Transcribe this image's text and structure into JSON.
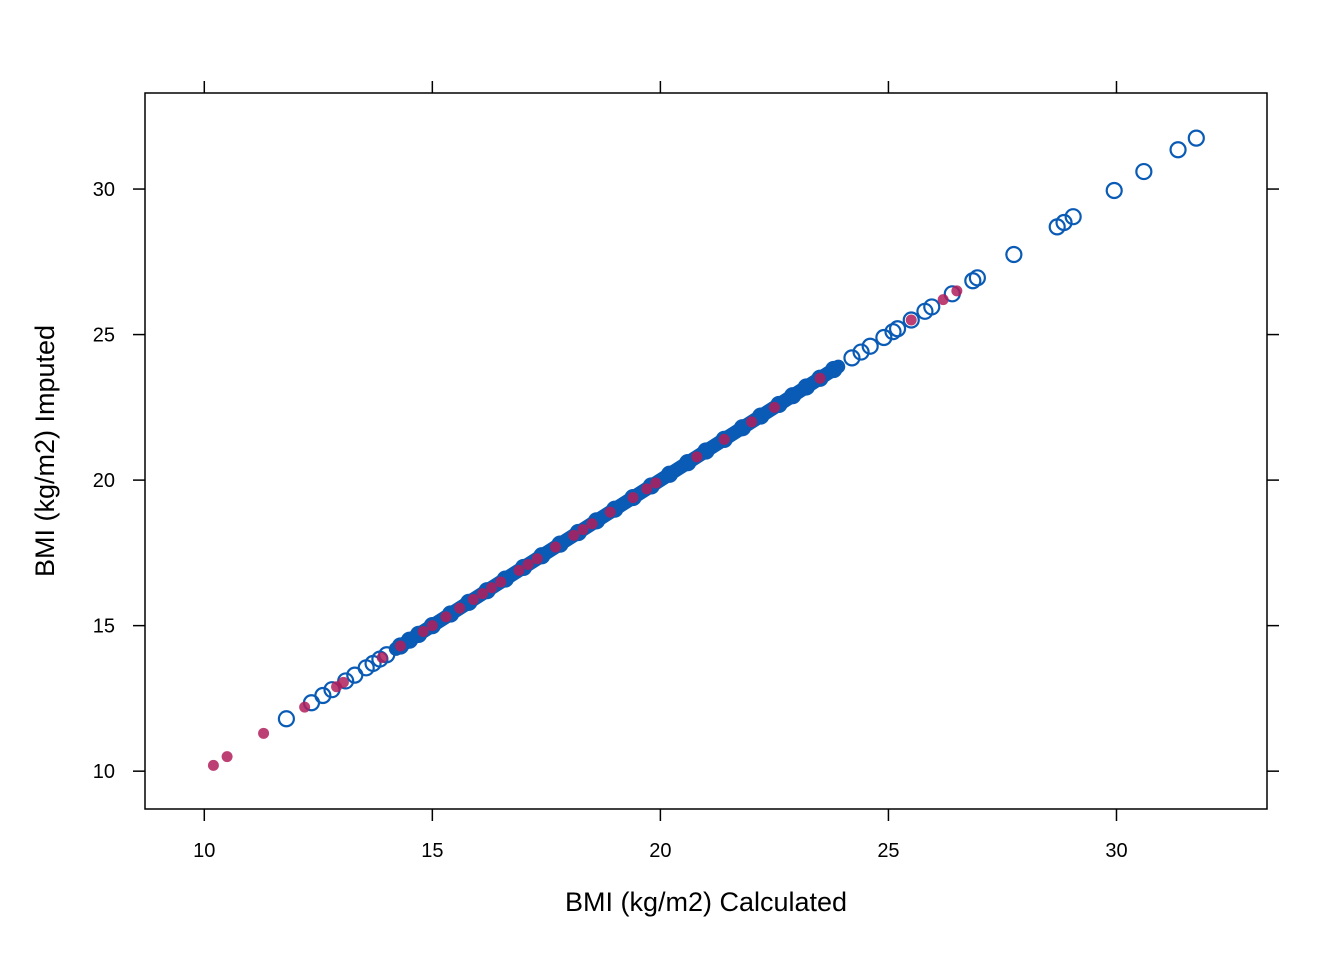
{
  "chart_data": {
    "type": "scatter",
    "title": "",
    "xlabel": "BMI (kg/m2) Calculated",
    "ylabel": "BMI (kg/m2) Imputed",
    "xlim": [
      8.7,
      33.3
    ],
    "ylim": [
      8.7,
      33.3
    ],
    "xticks": [
      "10",
      "15",
      "20",
      "25",
      "30"
    ],
    "yticks": [
      "10",
      "15",
      "20",
      "25",
      "30"
    ],
    "grid": false,
    "legend": "none",
    "series": [
      {
        "marker": "open-circle",
        "color": "#0a5bb5",
        "points": [
          [
            11.8,
            11.8
          ],
          [
            12.35,
            12.35
          ],
          [
            12.6,
            12.6
          ],
          [
            12.8,
            12.8
          ],
          [
            13.1,
            13.1
          ],
          [
            13.3,
            13.3
          ],
          [
            13.55,
            13.55
          ],
          [
            13.7,
            13.7
          ],
          [
            13.85,
            13.85
          ],
          [
            14.0,
            14.0
          ],
          [
            14.3,
            14.3
          ],
          [
            14.5,
            14.5
          ],
          [
            14.7,
            14.7
          ],
          [
            15.0,
            15.0
          ],
          [
            15.4,
            15.4
          ],
          [
            15.8,
            15.8
          ],
          [
            16.2,
            16.2
          ],
          [
            16.6,
            16.6
          ],
          [
            17.0,
            17.0
          ],
          [
            17.4,
            17.4
          ],
          [
            17.8,
            17.8
          ],
          [
            18.2,
            18.2
          ],
          [
            18.6,
            18.6
          ],
          [
            19.0,
            19.0
          ],
          [
            19.4,
            19.4
          ],
          [
            19.8,
            19.8
          ],
          [
            20.2,
            20.2
          ],
          [
            20.6,
            20.6
          ],
          [
            21.0,
            21.0
          ],
          [
            21.4,
            21.4
          ],
          [
            21.8,
            21.8
          ],
          [
            22.2,
            22.2
          ],
          [
            22.6,
            22.6
          ],
          [
            22.9,
            22.9
          ],
          [
            23.2,
            23.2
          ],
          [
            23.5,
            23.5
          ],
          [
            23.8,
            23.8
          ],
          [
            24.2,
            24.2
          ],
          [
            24.4,
            24.4
          ],
          [
            24.6,
            24.6
          ],
          [
            24.9,
            24.9
          ],
          [
            25.1,
            25.1
          ],
          [
            25.2,
            25.2
          ],
          [
            25.5,
            25.5
          ],
          [
            25.8,
            25.8
          ],
          [
            25.95,
            25.95
          ],
          [
            26.4,
            26.4
          ],
          [
            26.85,
            26.85
          ],
          [
            26.95,
            26.95
          ],
          [
            27.75,
            27.75
          ],
          [
            28.7,
            28.7
          ],
          [
            28.85,
            28.85
          ],
          [
            29.05,
            29.05
          ],
          [
            29.95,
            29.95
          ],
          [
            30.6,
            30.6
          ],
          [
            31.35,
            31.35
          ],
          [
            31.75,
            31.75
          ]
        ]
      },
      {
        "marker": "filled-circle",
        "color": "#b01e5a",
        "points": [
          [
            10.2,
            10.2
          ],
          [
            10.5,
            10.5
          ],
          [
            11.3,
            11.3
          ],
          [
            12.2,
            12.2
          ],
          [
            12.9,
            12.9
          ],
          [
            13.05,
            13.05
          ],
          [
            13.9,
            13.9
          ],
          [
            14.3,
            14.3
          ],
          [
            14.8,
            14.8
          ],
          [
            15.0,
            15.0
          ],
          [
            15.3,
            15.3
          ],
          [
            15.6,
            15.6
          ],
          [
            15.9,
            15.9
          ],
          [
            16.1,
            16.1
          ],
          [
            16.3,
            16.3
          ],
          [
            16.5,
            16.5
          ],
          [
            16.9,
            16.9
          ],
          [
            17.1,
            17.1
          ],
          [
            17.3,
            17.3
          ],
          [
            17.7,
            17.7
          ],
          [
            18.1,
            18.1
          ],
          [
            18.3,
            18.3
          ],
          [
            18.5,
            18.5
          ],
          [
            18.9,
            18.9
          ],
          [
            19.4,
            19.4
          ],
          [
            19.7,
            19.7
          ],
          [
            19.9,
            19.9
          ],
          [
            20.8,
            20.8
          ],
          [
            21.4,
            21.4
          ],
          [
            22.0,
            22.0
          ],
          [
            22.5,
            22.5
          ],
          [
            23.5,
            23.5
          ],
          [
            25.5,
            25.5
          ],
          [
            26.2,
            26.2
          ],
          [
            26.5,
            26.5
          ]
        ]
      }
    ]
  }
}
